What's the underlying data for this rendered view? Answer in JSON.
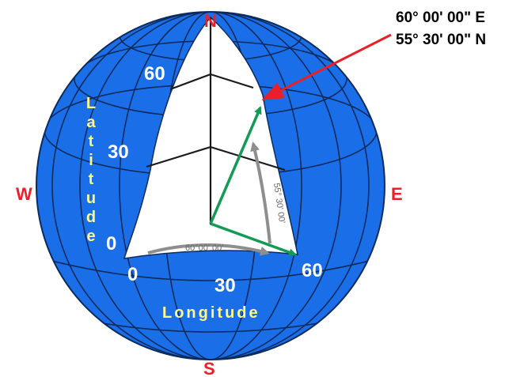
{
  "cardinals": {
    "north": "N",
    "south": "S",
    "east": "E",
    "west": "W"
  },
  "latitude": {
    "label": "Latitude",
    "ticks": [
      "60",
      "30",
      "0"
    ]
  },
  "longitude": {
    "label": "Longitude",
    "ticks": [
      "0",
      "30",
      "60"
    ]
  },
  "point": {
    "longitude": "60° 00' 00\" E",
    "latitude": "55° 30' 00\" N"
  },
  "angles": {
    "longitude_arc": "60°00' 00'",
    "latitude_arc": "55° 30' 00'"
  },
  "colors": {
    "globe": "#1a6fe8",
    "grid": "#0c2a5c",
    "cardinal": "#e8202a",
    "axis_word": "#fff98a",
    "vector": "#139a55",
    "pointer": "#e8202a",
    "arc": "#8e8e8e"
  }
}
